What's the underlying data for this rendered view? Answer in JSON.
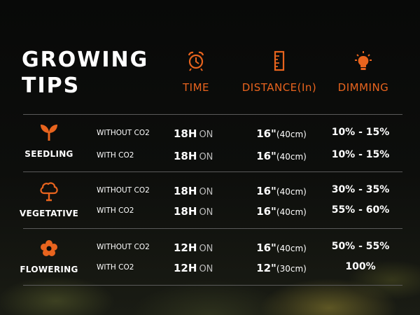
{
  "title": {
    "line1": "GROWING",
    "line2": "TIPS"
  },
  "headers": {
    "time": {
      "label": "TIME",
      "icon": "alarm-clock-icon"
    },
    "distance": {
      "label": "DISTANCE(In)",
      "icon": "ruler-icon"
    },
    "dimming": {
      "label": "DIMMING",
      "icon": "light-bulb-icon"
    }
  },
  "colors": {
    "accent": "#e8641e",
    "text": "#ffffff",
    "muted": "#bdbdbd",
    "divider": "#5a5a5a"
  },
  "stages": [
    {
      "name": "SEEDLING",
      "icon": "seedling-icon",
      "rows": [
        {
          "condition": "WITHOUT CO2",
          "hours": "18H",
          "on": "ON",
          "distance_in": "16\"",
          "distance_cm": "(40cm)",
          "dimming": "10% - 15%"
        },
        {
          "condition": "WITH CO2",
          "hours": "18H",
          "on": "ON",
          "distance_in": "16\"",
          "distance_cm": "(40cm)",
          "dimming": "10% - 15%"
        }
      ]
    },
    {
      "name": "VEGETATIVE",
      "icon": "tree-icon",
      "rows": [
        {
          "condition": "WITHOUT CO2",
          "hours": "18H",
          "on": "ON",
          "distance_in": "16\"",
          "distance_cm": "(40cm)",
          "dimming": "30% - 35%"
        },
        {
          "condition": "WITH CO2",
          "hours": "18H",
          "on": "ON",
          "distance_in": "16\"",
          "distance_cm": "(40cm)",
          "dimming": "55% - 60%"
        }
      ]
    },
    {
      "name": "FLOWERING",
      "icon": "flower-icon",
      "rows": [
        {
          "condition": "WITHOUT CO2",
          "hours": "12H",
          "on": "ON",
          "distance_in": "16\"",
          "distance_cm": "(40cm)",
          "dimming": "50% - 55%"
        },
        {
          "condition": "WITH CO2",
          "hours": "12H",
          "on": "ON",
          "distance_in": "12\"",
          "distance_cm": "(30cm)",
          "dimming": "100%"
        }
      ]
    }
  ]
}
